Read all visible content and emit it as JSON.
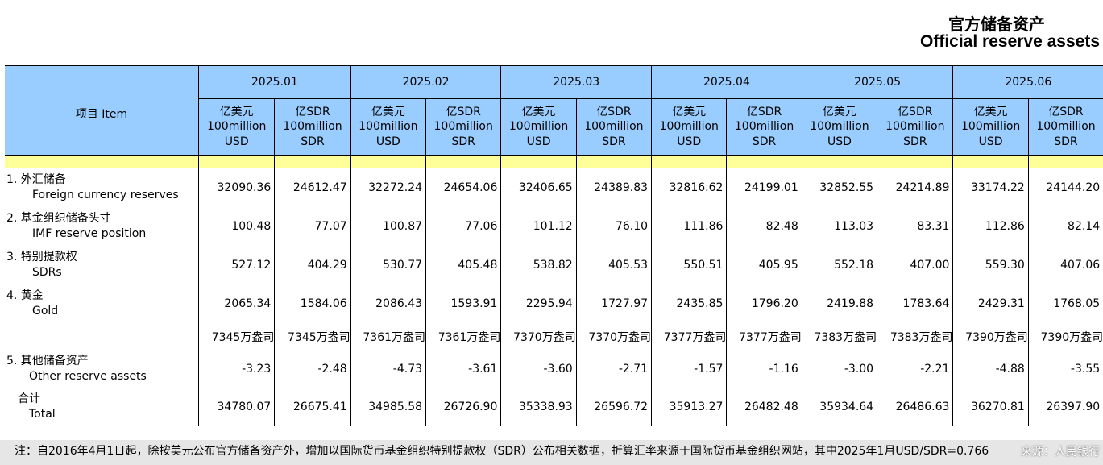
{
  "title_cn": "官方储备资产",
  "title_en": "Official reserve assets",
  "header": {
    "item": "项目 Item",
    "periods": [
      "2025.01",
      "2025.02",
      "2025.03",
      "2025.04",
      "2025.05",
      "2025.06"
    ],
    "unit_usd": {
      "cn": "亿美元",
      "l1": "100million",
      "l2": "USD"
    },
    "unit_sdr": {
      "cn": "亿SDR",
      "l1": "100million",
      "l2": "SDR"
    }
  },
  "rows": [
    {
      "cn": "1.  外汇储备",
      "en": "Foreign currency reserves",
      "values": [
        "32090.36",
        "24612.47",
        "32272.24",
        "24654.06",
        "32406.65",
        "24389.83",
        "32816.62",
        "24199.01",
        "32852.55",
        "24214.89",
        "33174.22",
        "24144.20"
      ]
    },
    {
      "cn": "2.  基金组织储备头寸",
      "en": "IMF reserve position",
      "values": [
        "100.48",
        "77.07",
        "100.87",
        "77.06",
        "101.12",
        "76.10",
        "111.86",
        "82.48",
        "113.03",
        "83.31",
        "112.86",
        "82.14"
      ]
    },
    {
      "cn": "3.  特别提款权",
      "en": "SDRs",
      "values": [
        "527.12",
        "404.29",
        "530.77",
        "405.48",
        "538.82",
        "405.53",
        "550.51",
        "405.95",
        "552.18",
        "407.00",
        "559.30",
        "407.06"
      ]
    },
    {
      "cn": "4.  黄金",
      "en": "Gold",
      "values": [
        "2065.34",
        "1584.06",
        "2086.43",
        "1593.91",
        "2295.94",
        "1727.97",
        "2435.85",
        "1796.20",
        "2419.88",
        "1783.64",
        "2429.31",
        "1768.05"
      ]
    },
    {
      "cn": "",
      "en": "",
      "values": [
        "7345万盎司",
        "7345万盎司",
        "7361万盎司",
        "7361万盎司",
        "7370万盎司",
        "7370万盎司",
        "7377万盎司",
        "7377万盎司",
        "7383万盎司",
        "7383万盎司",
        "7390万盎司",
        "7390万盎司"
      ]
    },
    {
      "cn": "5.  其他储备资产",
      "en": "Other reserve assets",
      "values": [
        "-3.23",
        "-2.48",
        "-4.73",
        "-3.61",
        "-3.60",
        "-2.71",
        "-1.57",
        "-1.16",
        "-3.00",
        "-2.21",
        "-4.88",
        "-3.55"
      ]
    },
    {
      "cn": "合计",
      "en": "Total",
      "values": [
        "34780.07",
        "26675.41",
        "34985.58",
        "26726.90",
        "35338.93",
        "26596.72",
        "35913.27",
        "26482.48",
        "35934.64",
        "26486.63",
        "36270.81",
        "26397.90"
      ]
    }
  ],
  "note": "注：自2016年4月1日起，除按美元公布官方储备资产外，增加以国际货币基金组织特别提款权（SDR）公布相关数据，折算汇率来源于国际货币基金组织网站，其中2025年1月USD/SDR=0.766",
  "watermark": "来源：人民银行"
}
